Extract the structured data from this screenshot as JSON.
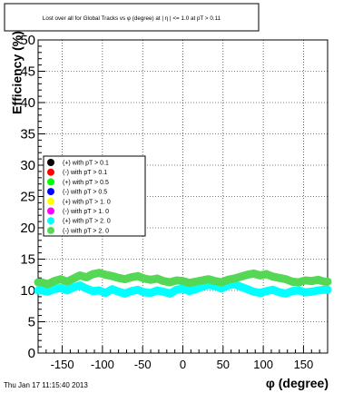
{
  "chart_data": {
    "type": "scatter",
    "title": "Lost over all for Global Tracks vs φ (degree) at |  η | <= 1.0 at pT > 0.11",
    "xlabel": "φ (degree)",
    "ylabel": "Efficiency (%)",
    "xlim": [
      -180,
      180
    ],
    "ylim": [
      0,
      50
    ],
    "x_ticks": [
      -150,
      -100,
      -50,
      0,
      50,
      100,
      150
    ],
    "y_ticks": [
      0,
      5,
      10,
      15,
      20,
      25,
      30,
      35,
      40,
      45,
      50
    ],
    "grid": true,
    "legend_position": "middle-left",
    "timestamp": "Thu Jan 17 11:15:40 2013",
    "series": [
      {
        "name": "(+) with pT > 0.1",
        "color": "#000000",
        "values": []
      },
      {
        "name": "(-) with pT > 0.1",
        "color": "#ff0000",
        "values": []
      },
      {
        "name": "(+) with pT > 0.5",
        "color": "#00ff00",
        "values": []
      },
      {
        "name": "(-) with pT > 0.5",
        "color": "#0000ff",
        "values": []
      },
      {
        "name": "(+) with pT > 1. 0",
        "color": "#ffff00",
        "values": []
      },
      {
        "name": "(-) with pT > 1. 0",
        "color": "#ff00ff",
        "values": []
      },
      {
        "name": "(+) with pT > 2. 0",
        "color": "#00ffff",
        "x": [
          -176,
          -168,
          -160,
          -152,
          -144,
          -136,
          -128,
          -120,
          -112,
          -104,
          -96,
          -88,
          -80,
          -72,
          -64,
          -56,
          -48,
          -40,
          -32,
          -24,
          -16,
          -8,
          0,
          8,
          16,
          24,
          32,
          40,
          48,
          56,
          64,
          72,
          80,
          88,
          96,
          104,
          112,
          120,
          128,
          136,
          144,
          152,
          160,
          168,
          176
        ],
        "values": [
          10.0,
          9.8,
          10.2,
          10.4,
          10.0,
          10.5,
          10.8,
          10.3,
          9.9,
          10.0,
          9.6,
          10.2,
          9.8,
          9.5,
          9.9,
          10.1,
          9.7,
          9.6,
          10.0,
          9.8,
          9.5,
          10.1,
          10.3,
          9.9,
          10.2,
          10.6,
          10.9,
          10.7,
          10.3,
          10.8,
          11.0,
          10.6,
          10.2,
          9.8,
          9.6,
          9.9,
          10.1,
          9.7,
          9.5,
          9.9,
          10.0,
          9.7,
          9.8,
          10.0,
          10.1
        ]
      },
      {
        "name": "(-) with pT > 2. 0",
        "color": "#55d855",
        "x": [
          -176,
          -168,
          -160,
          -152,
          -144,
          -136,
          -128,
          -120,
          -112,
          -104,
          -96,
          -88,
          -80,
          -72,
          -64,
          -56,
          -48,
          -40,
          -32,
          -24,
          -16,
          -8,
          0,
          8,
          16,
          24,
          32,
          40,
          48,
          56,
          64,
          72,
          80,
          88,
          96,
          104,
          112,
          120,
          128,
          136,
          144,
          152,
          160,
          168,
          176
        ],
        "values": [
          11.3,
          11.0,
          11.5,
          11.8,
          11.4,
          11.9,
          12.4,
          12.1,
          12.6,
          12.8,
          12.5,
          12.3,
          12.0,
          11.8,
          12.1,
          12.3,
          11.9,
          11.7,
          11.9,
          11.5,
          11.3,
          11.6,
          11.5,
          11.2,
          11.4,
          11.6,
          11.8,
          11.5,
          11.3,
          11.7,
          11.9,
          12.2,
          12.5,
          12.7,
          12.4,
          12.6,
          12.2,
          12.0,
          11.8,
          11.4,
          11.3,
          11.6,
          11.5,
          11.7,
          11.4
        ]
      }
    ]
  }
}
